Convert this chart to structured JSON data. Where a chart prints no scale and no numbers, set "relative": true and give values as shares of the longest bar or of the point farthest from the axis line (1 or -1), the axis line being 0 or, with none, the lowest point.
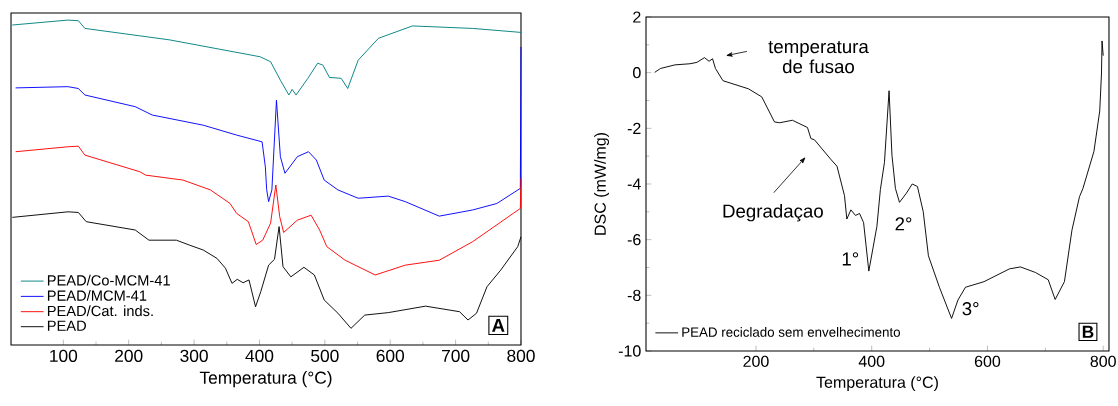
{
  "chart_data": [
    {
      "type": "line",
      "relative": true,
      "xlabel": "Temperatura (°C)",
      "xlim": [
        20,
        800
      ],
      "xticks": [
        100,
        200,
        300,
        400,
        500,
        600,
        700,
        800
      ],
      "tick_labels": "x",
      "legend": "bottom left",
      "marker": "none",
      "annotations": [
        "A"
      ],
      "series": [
        {
          "name": "PEAD/Co-MCM-41",
          "color": "#008080",
          "x": [
            22,
            107,
            123,
            133,
            262,
            401,
            417,
            432,
            445,
            450,
            456,
            474,
            489,
            497,
            507,
            525,
            535,
            551,
            582,
            634,
            726,
            800
          ],
          "values": [
            0.984,
            1.0,
            0.998,
            0.973,
            0.936,
            0.881,
            0.865,
            0.805,
            0.757,
            0.775,
            0.757,
            0.811,
            0.86,
            0.854,
            0.814,
            0.811,
            0.778,
            0.87,
            0.941,
            0.981,
            0.973,
            0.96
          ]
        },
        {
          "name": "PEAD/MCM-41",
          "color": "#0000ff",
          "x": [
            27,
            107,
            123,
            133,
            210,
            236,
            314,
            365,
            404,
            409,
            411,
            414,
            419,
            426,
            432,
            439,
            458,
            475,
            487,
            499,
            520,
            551,
            597,
            623,
            675,
            726,
            763,
            799,
            800
          ],
          "values": [
            0.78,
            0.784,
            0.778,
            0.757,
            0.719,
            0.692,
            0.659,
            0.627,
            0.605,
            0.524,
            0.45,
            0.411,
            0.449,
            0.74,
            0.557,
            0.503,
            0.557,
            0.573,
            0.546,
            0.481,
            0.449,
            0.422,
            0.429,
            0.411,
            0.364,
            0.384,
            0.405,
            0.454,
            0.913
          ]
        },
        {
          "name": "PEAD/Cat. inds.",
          "color": "#ff0000",
          "x": [
            27,
            107,
            123,
            133,
            217,
            226,
            283,
            325,
            355,
            365,
            383,
            395,
            405,
            417,
            425,
            431,
            437,
            458,
            479,
            492,
            503,
            531,
            577,
            623,
            675,
            726,
            799,
            800
          ],
          "values": [
            0.573,
            0.589,
            0.591,
            0.562,
            0.508,
            0.497,
            0.481,
            0.449,
            0.405,
            0.373,
            0.346,
            0.272,
            0.286,
            0.341,
            0.465,
            0.362,
            0.311,
            0.351,
            0.367,
            0.319,
            0.265,
            0.221,
            0.173,
            0.205,
            0.221,
            0.281,
            0.389,
            0.488
          ]
        },
        {
          "name": "PEAD",
          "color": "#000000",
          "x": [
            22,
            107,
            123,
            135,
            210,
            231,
            273,
            293,
            314,
            335,
            348,
            358,
            366,
            375,
            384,
            394,
            402,
            414,
            423,
            430,
            436,
            448,
            468,
            484,
            499,
            520,
            540,
            561,
            597,
            654,
            706,
            719,
            732,
            748,
            769,
            795,
            800
          ],
          "values": [
            0.36,
            0.378,
            0.376,
            0.346,
            0.319,
            0.286,
            0.286,
            0.27,
            0.254,
            0.227,
            0.195,
            0.146,
            0.159,
            0.148,
            0.157,
            0.07,
            0.119,
            0.205,
            0.224,
            0.33,
            0.2,
            0.167,
            0.198,
            0.173,
            0.092,
            0.049,
            0.0,
            0.043,
            0.051,
            0.072,
            0.054,
            0.027,
            0.049,
            0.135,
            0.189,
            0.265,
            0.297
          ]
        }
      ]
    },
    {
      "type": "line",
      "xlabel": "Temperatura (°C)",
      "ylabel": "DSC (mW/mg)",
      "xlim": [
        10,
        810
      ],
      "xticks": [
        200,
        400,
        600,
        800
      ],
      "ylim": [
        -10,
        2
      ],
      "yticks": [
        -10,
        -8,
        -6,
        -4,
        -2,
        0,
        2
      ],
      "legend": "bottom left",
      "marker": "none",
      "annotations": [
        "temperatura de fusao",
        "Degradaçao",
        {
          "text": "1°",
          "x": 395,
          "y": -7.13
        },
        {
          "text": "2°",
          "x": 448,
          "y": -4.66
        },
        {
          "text": "3°",
          "x": 538,
          "y": -8.83
        },
        "B"
      ],
      "series": [
        {
          "name": "PEAD reciclado sem envelhecimento",
          "color": "#000000",
          "x": [
            25,
            35,
            60,
            86,
            98,
            111,
            119,
            125,
            130,
            143,
            187,
            210,
            232,
            241,
            263,
            289,
            295,
            301,
            330,
            340,
            353,
            357,
            364,
            372,
            379,
            386,
            395,
            409,
            415,
            422,
            430,
            435,
            441,
            448,
            460,
            470,
            479,
            489,
            498,
            517,
            538,
            549,
            562,
            594,
            638,
            657,
            683,
            705,
            717,
            733,
            746,
            759,
            765,
            784,
            794,
            797,
            798,
            800
          ],
          "values": [
            0.01,
            0.15,
            0.28,
            0.32,
            0.37,
            0.54,
            0.41,
            0.5,
            0.15,
            -0.29,
            -0.58,
            -0.87,
            -1.77,
            -1.8,
            -1.71,
            -1.97,
            -2.37,
            -2.41,
            -3.13,
            -3.36,
            -4.42,
            -5.26,
            -4.93,
            -5.13,
            -5.06,
            -5.39,
            -7.13,
            -5.52,
            -4.2,
            -3.23,
            -0.65,
            -2.97,
            -4.16,
            -4.66,
            -4.33,
            -4.0,
            -4.09,
            -4.99,
            -6.58,
            -7.71,
            -8.83,
            -8.17,
            -7.71,
            -7.51,
            -7.05,
            -6.98,
            -7.18,
            -7.44,
            -8.15,
            -7.51,
            -5.66,
            -4.46,
            -4.16,
            -2.83,
            -1.38,
            -0.05,
            1.14,
            0.61
          ]
        }
      ]
    }
  ]
}
